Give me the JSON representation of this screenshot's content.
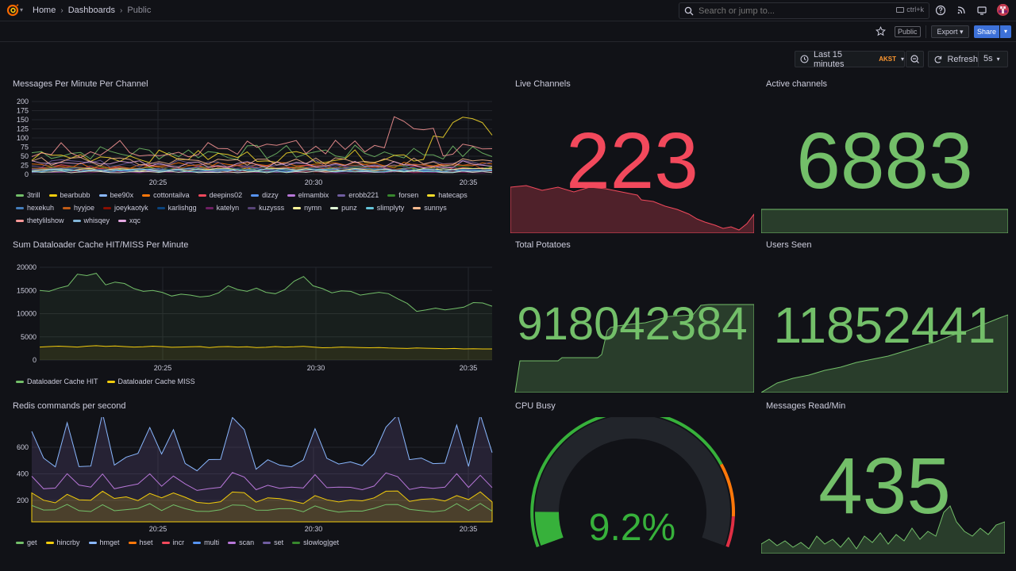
{
  "nav": {
    "breadcrumbs": [
      "Home",
      "Dashboards",
      "Public"
    ],
    "search_placeholder": "Search or jump to...",
    "search_shortcut": "ctrl+k"
  },
  "toolbar": {
    "public_label": "Public",
    "export_label": "Export",
    "share_label": "Share",
    "time_range": "Last 15 minutes",
    "timezone": "AKST",
    "refresh_label": "Refresh",
    "refresh_interval": "5s"
  },
  "panels": {
    "messages": {
      "title": "Messages Per Minute Per Channel",
      "y_ticks": [
        "200",
        "175",
        "150",
        "125",
        "100",
        "75",
        "50",
        "25",
        "0"
      ],
      "x_ticks": [
        "20:25",
        "20:30",
        "20:35"
      ],
      "legend": [
        {
          "name": "3trill",
          "color": "#73bf69"
        },
        {
          "name": "bearbubb",
          "color": "#f2cc0c"
        },
        {
          "name": "bee90x",
          "color": "#8ab8ff"
        },
        {
          "name": "cottontailva",
          "color": "#ff780a"
        },
        {
          "name": "deepins02",
          "color": "#f2495c"
        },
        {
          "name": "dizzy",
          "color": "#5794f2"
        },
        {
          "name": "elmambix",
          "color": "#b877d9"
        },
        {
          "name": "erobb221",
          "color": "#705da0"
        },
        {
          "name": "forsen",
          "color": "#37872d"
        },
        {
          "name": "hatecaps",
          "color": "#fade2a"
        },
        {
          "name": "hexekuh",
          "color": "#447ebc"
        },
        {
          "name": "hyyjoe",
          "color": "#c15c17"
        },
        {
          "name": "joeykaotyk",
          "color": "#890f02"
        },
        {
          "name": "karlishgg",
          "color": "#0a437c"
        },
        {
          "name": "katelyn",
          "color": "#6d1f62"
        },
        {
          "name": "kuzysss",
          "color": "#584477"
        },
        {
          "name": "nymn",
          "color": "#fff899"
        },
        {
          "name": "punz",
          "color": "#e0f9d7"
        },
        {
          "name": "slimplyty",
          "color": "#65c5db"
        },
        {
          "name": "sunnys",
          "color": "#f9ba8f"
        },
        {
          "name": "thetylilshow",
          "color": "#ff9999"
        },
        {
          "name": "whisqey",
          "color": "#82b5d8"
        },
        {
          "name": "xqc",
          "color": "#e5a8e2"
        }
      ]
    },
    "dataloader": {
      "title": "Sum Dataloader Cache HIT/MISS Per Minute",
      "y_ticks": [
        "20000",
        "15000",
        "10000",
        "5000",
        "0"
      ],
      "x_ticks": [
        "20:25",
        "20:30",
        "20:35"
      ],
      "legend": [
        {
          "name": "Dataloader Cache HIT",
          "color": "#73bf69"
        },
        {
          "name": "Dataloader Cache MISS",
          "color": "#f2cc0c"
        }
      ]
    },
    "redis": {
      "title": "Redis commands per second",
      "y_ticks": [
        "600",
        "400",
        "200"
      ],
      "x_ticks": [
        "20:25",
        "20:30",
        "20:35"
      ],
      "legend": [
        {
          "name": "get",
          "color": "#73bf69"
        },
        {
          "name": "hincrby",
          "color": "#f2cc0c"
        },
        {
          "name": "hmget",
          "color": "#8ab8ff"
        },
        {
          "name": "hset",
          "color": "#ff780a"
        },
        {
          "name": "incr",
          "color": "#f2495c"
        },
        {
          "name": "multi",
          "color": "#5794f2"
        },
        {
          "name": "scan",
          "color": "#b877d9"
        },
        {
          "name": "set",
          "color": "#705da0"
        },
        {
          "name": "slowlog|get",
          "color": "#37872d"
        }
      ]
    },
    "live_channels": {
      "title": "Live Channels",
      "value": "223",
      "color": "#f2495c"
    },
    "active_channels": {
      "title": "Active channels",
      "value": "6883",
      "color": "#73bf69"
    },
    "total_potatoes": {
      "title": "Total Potatoes",
      "value": "918042384",
      "color": "#73bf69"
    },
    "users_seen": {
      "title": "Users Seen",
      "value": "11852441",
      "color": "#73bf69"
    },
    "cpu_busy": {
      "title": "CPU Busy",
      "value": "9.2%",
      "percent": 9.2,
      "color": "#37b13b"
    },
    "messages_read": {
      "title": "Messages Read/Min",
      "value": "435",
      "color": "#73bf69"
    }
  }
}
